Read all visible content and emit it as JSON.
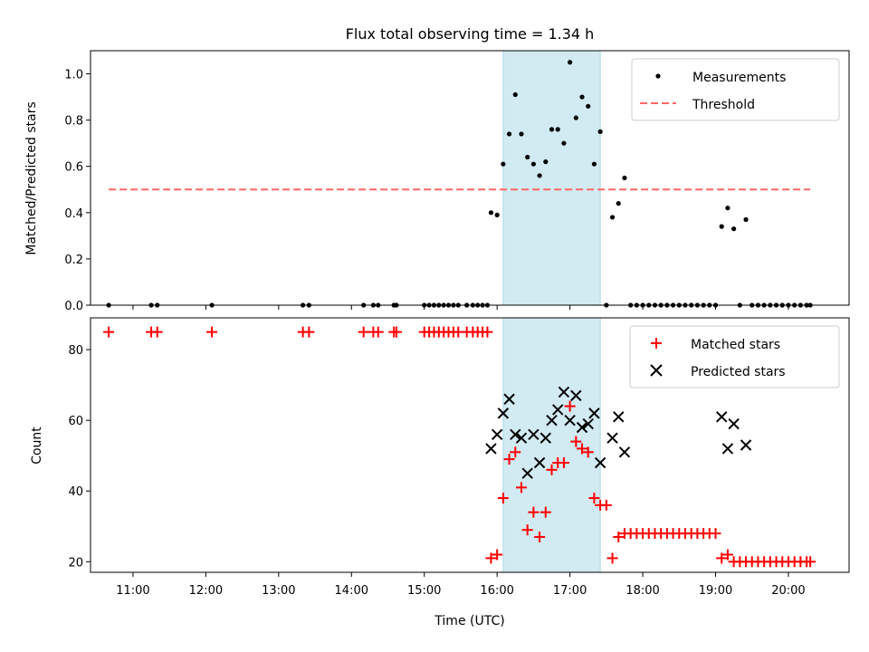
{
  "title": "Flux total observing time = 1.34 h",
  "colors": {
    "measurement": "#000000",
    "threshold": "#ff6666",
    "matched": "#ff0000",
    "predicted": "#000000",
    "highlight": "#add8e6"
  },
  "chart_data": [
    {
      "type": "scatter",
      "ylabel": "Matched/Predicted stars",
      "xlabel": "",
      "xlim": [
        "10:25",
        "20:50"
      ],
      "ylim": [
        0,
        1.1
      ],
      "yticks": [
        "0.0",
        "0.2",
        "0.4",
        "0.6",
        "0.8",
        "1.0"
      ],
      "grid": false,
      "legend_position": "top-right",
      "shaded_interval": [
        "16:05",
        "17:25"
      ],
      "threshold": {
        "name": "Threshold",
        "value": 0.5,
        "x_range": [
          "10:40",
          "20:18"
        ],
        "style": "dashed"
      },
      "series": [
        {
          "name": "Measurements",
          "points": [
            [
              "10:40",
              0
            ],
            [
              "11:15",
              0
            ],
            [
              "11:20",
              0
            ],
            [
              "12:05",
              0
            ],
            [
              "13:20",
              0
            ],
            [
              "13:25",
              0
            ],
            [
              "14:10",
              0
            ],
            [
              "14:18",
              0
            ],
            [
              "14:22",
              0
            ],
            [
              "14:35",
              0
            ],
            [
              "14:37",
              0
            ],
            [
              "15:00",
              0
            ],
            [
              "15:04",
              0
            ],
            [
              "15:08",
              0
            ],
            [
              "15:12",
              0
            ],
            [
              "15:16",
              0
            ],
            [
              "15:20",
              0
            ],
            [
              "15:24",
              0
            ],
            [
              "15:28",
              0
            ],
            [
              "15:35",
              0
            ],
            [
              "15:40",
              0
            ],
            [
              "15:44",
              0
            ],
            [
              "15:48",
              0
            ],
            [
              "15:52",
              0
            ],
            [
              "15:55",
              0.4
            ],
            [
              "16:00",
              0.39
            ],
            [
              "16:05",
              0.61
            ],
            [
              "16:10",
              0.74
            ],
            [
              "16:15",
              0.91
            ],
            [
              "16:20",
              0.74
            ],
            [
              "16:25",
              0.64
            ],
            [
              "16:30",
              0.61
            ],
            [
              "16:35",
              0.56
            ],
            [
              "16:40",
              0.62
            ],
            [
              "16:45",
              0.76
            ],
            [
              "16:50",
              0.76
            ],
            [
              "16:55",
              0.7
            ],
            [
              "17:00",
              1.05
            ],
            [
              "17:05",
              0.81
            ],
            [
              "17:10",
              0.9
            ],
            [
              "17:15",
              0.86
            ],
            [
              "17:20",
              0.61
            ],
            [
              "17:25",
              0.75
            ],
            [
              "17:30",
              0
            ],
            [
              "17:35",
              0.38
            ],
            [
              "17:40",
              0.44
            ],
            [
              "17:45",
              0.55
            ],
            [
              "17:50",
              0
            ],
            [
              "17:55",
              0
            ],
            [
              "18:00",
              0
            ],
            [
              "18:05",
              0
            ],
            [
              "18:10",
              0
            ],
            [
              "18:15",
              0
            ],
            [
              "18:20",
              0
            ],
            [
              "18:25",
              0
            ],
            [
              "18:30",
              0
            ],
            [
              "18:35",
              0
            ],
            [
              "18:40",
              0
            ],
            [
              "18:45",
              0
            ],
            [
              "18:50",
              0
            ],
            [
              "18:55",
              0
            ],
            [
              "19:00",
              0
            ],
            [
              "19:05",
              0.34
            ],
            [
              "19:10",
              0.42
            ],
            [
              "19:15",
              0.33
            ],
            [
              "19:20",
              0
            ],
            [
              "19:25",
              0.37
            ],
            [
              "19:30",
              0
            ],
            [
              "19:35",
              0
            ],
            [
              "19:40",
              0
            ],
            [
              "19:45",
              0
            ],
            [
              "19:50",
              0
            ],
            [
              "19:55",
              0
            ],
            [
              "20:00",
              0
            ],
            [
              "20:05",
              0
            ],
            [
              "20:10",
              0
            ],
            [
              "20:15",
              0
            ],
            [
              "20:18",
              0
            ]
          ]
        }
      ]
    },
    {
      "type": "scatter",
      "ylabel": "Count",
      "xlabel": "Time (UTC)",
      "xlim": [
        "10:25",
        "20:50"
      ],
      "ylim": [
        17,
        89
      ],
      "yticks": [
        "20",
        "40",
        "60",
        "80"
      ],
      "xticks": [
        "11:00",
        "12:00",
        "13:00",
        "14:00",
        "15:00",
        "16:00",
        "17:00",
        "18:00",
        "19:00",
        "20:00"
      ],
      "grid": false,
      "legend_position": "top-right",
      "shaded_interval": [
        "16:05",
        "17:25"
      ],
      "series": [
        {
          "name": "Matched stars",
          "marker": "plus",
          "points": [
            [
              "10:40",
              85
            ],
            [
              "11:15",
              85
            ],
            [
              "11:20",
              85
            ],
            [
              "12:05",
              85
            ],
            [
              "13:20",
              85
            ],
            [
              "13:25",
              85
            ],
            [
              "14:10",
              85
            ],
            [
              "14:18",
              85
            ],
            [
              "14:22",
              85
            ],
            [
              "14:35",
              85
            ],
            [
              "14:37",
              85
            ],
            [
              "15:00",
              85
            ],
            [
              "15:04",
              85
            ],
            [
              "15:08",
              85
            ],
            [
              "15:12",
              85
            ],
            [
              "15:16",
              85
            ],
            [
              "15:20",
              85
            ],
            [
              "15:24",
              85
            ],
            [
              "15:28",
              85
            ],
            [
              "15:35",
              85
            ],
            [
              "15:40",
              85
            ],
            [
              "15:44",
              85
            ],
            [
              "15:48",
              85
            ],
            [
              "15:52",
              85
            ],
            [
              "15:55",
              21
            ],
            [
              "16:00",
              22
            ],
            [
              "16:05",
              38
            ],
            [
              "16:10",
              49
            ],
            [
              "16:15",
              51
            ],
            [
              "16:20",
              41
            ],
            [
              "16:25",
              29
            ],
            [
              "16:30",
              34
            ],
            [
              "16:35",
              27
            ],
            [
              "16:40",
              34
            ],
            [
              "16:45",
              46
            ],
            [
              "16:50",
              48
            ],
            [
              "16:55",
              48
            ],
            [
              "17:00",
              64
            ],
            [
              "17:05",
              54
            ],
            [
              "17:10",
              52
            ],
            [
              "17:15",
              51
            ],
            [
              "17:20",
              38
            ],
            [
              "17:25",
              36
            ],
            [
              "17:30",
              36
            ],
            [
              "17:35",
              21
            ],
            [
              "17:40",
              27
            ],
            [
              "17:45",
              28
            ],
            [
              "17:50",
              28
            ],
            [
              "17:55",
              28
            ],
            [
              "18:00",
              28
            ],
            [
              "18:05",
              28
            ],
            [
              "18:10",
              28
            ],
            [
              "18:15",
              28
            ],
            [
              "18:20",
              28
            ],
            [
              "18:25",
              28
            ],
            [
              "18:30",
              28
            ],
            [
              "18:35",
              28
            ],
            [
              "18:40",
              28
            ],
            [
              "18:45",
              28
            ],
            [
              "18:50",
              28
            ],
            [
              "18:55",
              28
            ],
            [
              "19:00",
              28
            ],
            [
              "19:05",
              21
            ],
            [
              "19:10",
              22
            ],
            [
              "19:15",
              20
            ],
            [
              "19:20",
              20
            ],
            [
              "19:25",
              20
            ],
            [
              "19:30",
              20
            ],
            [
              "19:35",
              20
            ],
            [
              "19:40",
              20
            ],
            [
              "19:45",
              20
            ],
            [
              "19:50",
              20
            ],
            [
              "19:55",
              20
            ],
            [
              "20:00",
              20
            ],
            [
              "20:05",
              20
            ],
            [
              "20:10",
              20
            ],
            [
              "20:15",
              20
            ],
            [
              "20:18",
              20
            ]
          ]
        },
        {
          "name": "Predicted stars",
          "marker": "x",
          "points": [
            [
              "15:55",
              52
            ],
            [
              "16:00",
              56
            ],
            [
              "16:05",
              62
            ],
            [
              "16:10",
              66
            ],
            [
              "16:15",
              56
            ],
            [
              "16:20",
              55
            ],
            [
              "16:25",
              45
            ],
            [
              "16:30",
              56
            ],
            [
              "16:35",
              48
            ],
            [
              "16:40",
              55
            ],
            [
              "16:45",
              60
            ],
            [
              "16:50",
              63
            ],
            [
              "16:55",
              68
            ],
            [
              "17:00",
              60
            ],
            [
              "17:05",
              67
            ],
            [
              "17:10",
              58
            ],
            [
              "17:15",
              59
            ],
            [
              "17:20",
              62
            ],
            [
              "17:25",
              48
            ],
            [
              "17:35",
              55
            ],
            [
              "17:40",
              61
            ],
            [
              "17:45",
              51
            ],
            [
              "19:05",
              61
            ],
            [
              "19:10",
              52
            ],
            [
              "19:15",
              59
            ],
            [
              "19:25",
              53
            ]
          ]
        }
      ]
    }
  ]
}
